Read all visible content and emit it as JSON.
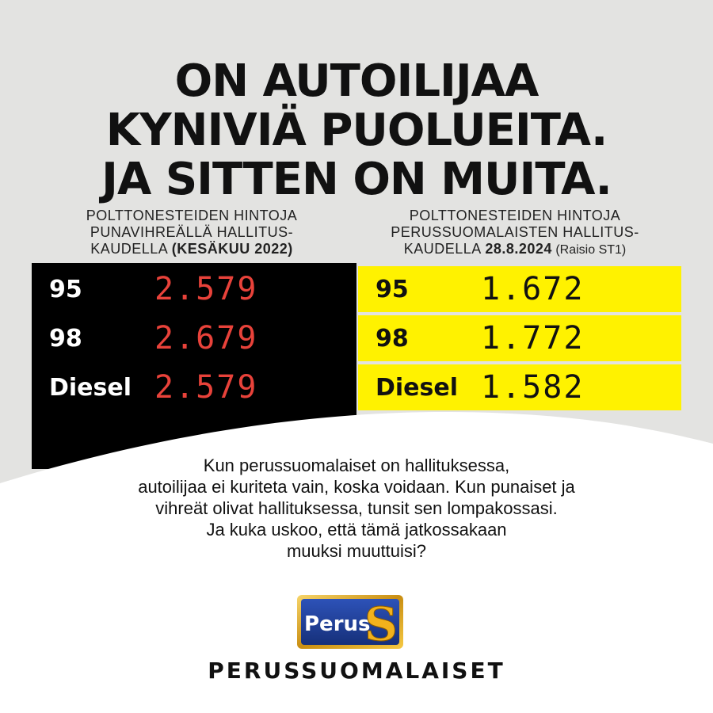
{
  "headline": {
    "line1": "ON AUTOILIJAA",
    "line2": "KYNIVIÄ PUOLUEITA.",
    "line3": "JA SITTEN ON MUITA."
  },
  "left_column": {
    "line1": "POLTTONESTEIDEN HINTOJA",
    "line2": "PUNAVIHREÄLLÄ HALLITUS-",
    "line3_prefix": "KAUDELLA ",
    "line3_bold": "(KESÄKUU 2022)",
    "rows": [
      {
        "grade": "95",
        "price": "2.579"
      },
      {
        "grade": "98",
        "price": "2.679"
      },
      {
        "grade": "Diesel",
        "price": "2.579"
      }
    ]
  },
  "right_column": {
    "line1": "POLTTONESTEIDEN HINTOJA",
    "line2": "PERUSSUOMALAISTEN HALLITUS-",
    "line3_prefix": "KAUDELLA ",
    "line3_bold": "28.8.2024",
    "line3_suffix": " (Raisio ST1)",
    "rows": [
      {
        "grade": "95",
        "price": "1.672"
      },
      {
        "grade": "98",
        "price": "1.772"
      },
      {
        "grade": "Diesel",
        "price": "1.582"
      }
    ]
  },
  "body_text": {
    "line1": "Kun perussuomalaiset on hallituksessa,",
    "line2": "autoilijaa ei kuriteta vain, koska voidaan. Kun punaiset ja",
    "line3": "vihreät olivat hallituksessa, tunsit sen lompakossasi.",
    "line4": "Ja kuka uskoo, että tämä jatkossakaan",
    "line5": "muuksi muuttuisi?"
  },
  "logo": {
    "text": "Perus",
    "letter": "S"
  },
  "brand_name": "PERUSSUOMALAISET",
  "colors": {
    "background": "#e3e3e1",
    "black_panel": "#000000",
    "yellow_panel": "#fff200",
    "red_price": "#e8423a",
    "logo_blue": "#1f3f9a",
    "logo_gold": "#f2b21c"
  }
}
